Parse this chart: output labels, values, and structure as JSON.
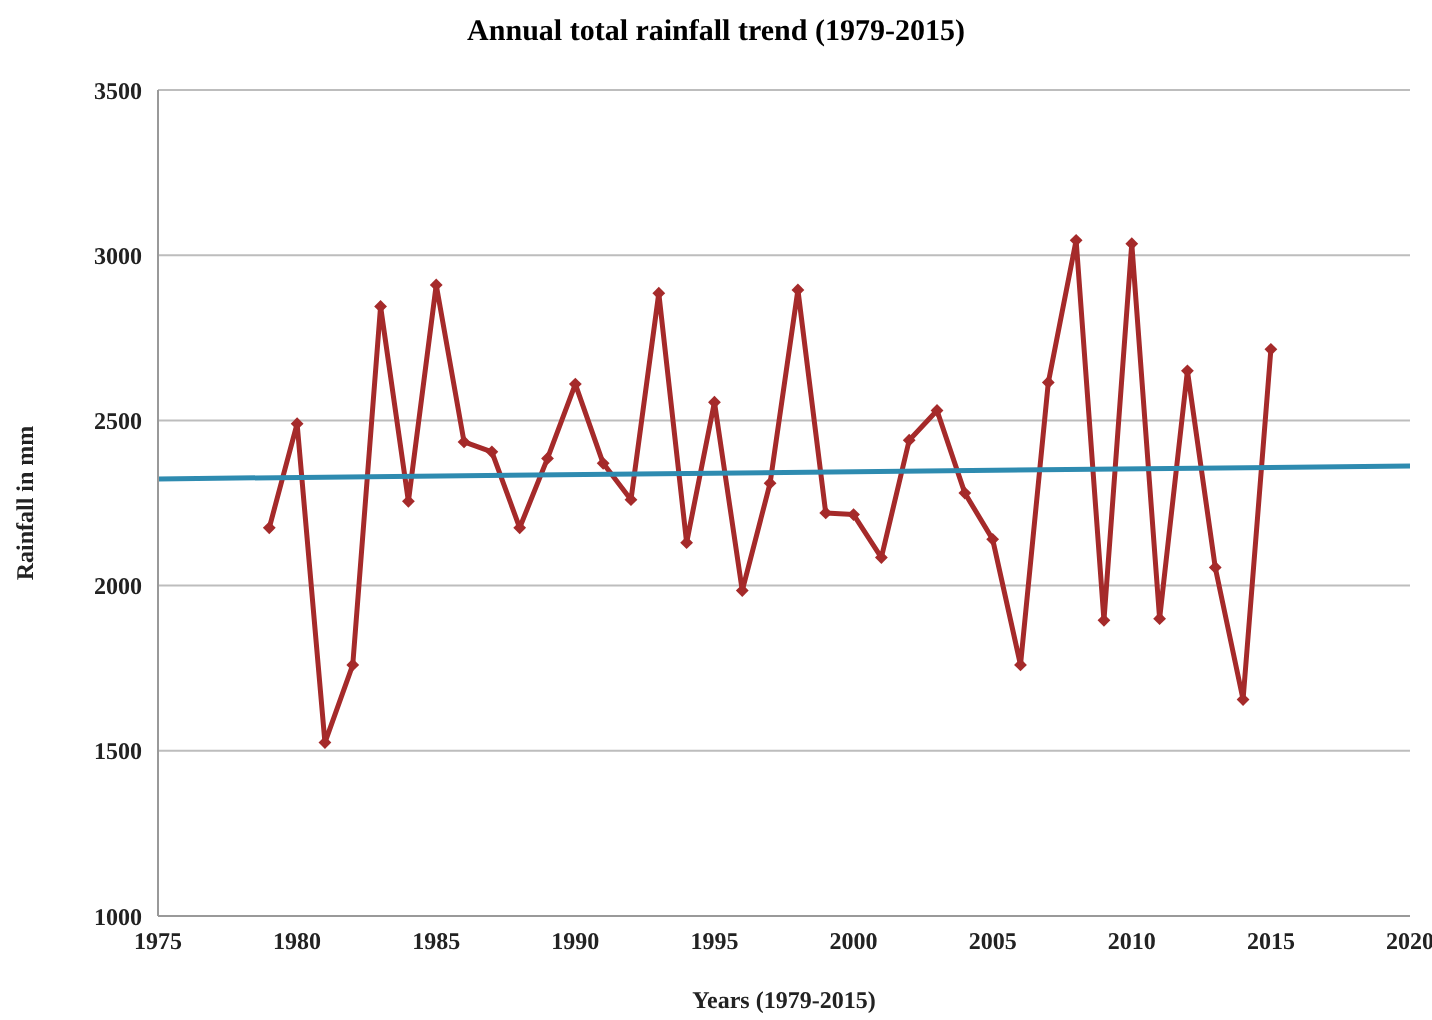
{
  "chart_data": {
    "type": "line",
    "title": "Annual total rainfall trend (1979-2015)",
    "xlabel": "Years (1979-2015)",
    "ylabel": "Rainfall in mm",
    "x": [
      1979,
      1980,
      1981,
      1982,
      1983,
      1984,
      1985,
      1986,
      1987,
      1988,
      1989,
      1990,
      1991,
      1992,
      1993,
      1994,
      1995,
      1996,
      1997,
      1998,
      1999,
      2000,
      2001,
      2002,
      2003,
      2004,
      2005,
      2006,
      2007,
      2008,
      2009,
      2010,
      2011,
      2012,
      2013,
      2014,
      2015
    ],
    "series": [
      {
        "color": "#a52a2a",
        "marker": "diamond",
        "values": [
          2175,
          2490,
          1525,
          1760,
          2845,
          2255,
          2910,
          2435,
          2405,
          2175,
          2385,
          2610,
          2370,
          2260,
          2885,
          2130,
          2555,
          1985,
          2310,
          2895,
          2220,
          2215,
          2085,
          2440,
          2530,
          2280,
          2140,
          1760,
          2615,
          3045,
          1895,
          3035,
          1900,
          2650,
          2055,
          1655,
          2715
        ]
      },
      {
        "type": "line",
        "color": "#2e8bb0",
        "marker": "none",
        "x": [
          1975,
          2020
        ],
        "values": [
          2323,
          2362
        ]
      }
    ],
    "xlim": [
      1975,
      2020
    ],
    "xticks": [
      1975,
      1980,
      1985,
      1990,
      1995,
      2000,
      2005,
      2010,
      2015,
      2020
    ],
    "ylim": [
      1000,
      3500
    ],
    "yticks": [
      1000,
      1500,
      2000,
      2500,
      3000,
      3500
    ],
    "grid": "y",
    "legend": false
  }
}
